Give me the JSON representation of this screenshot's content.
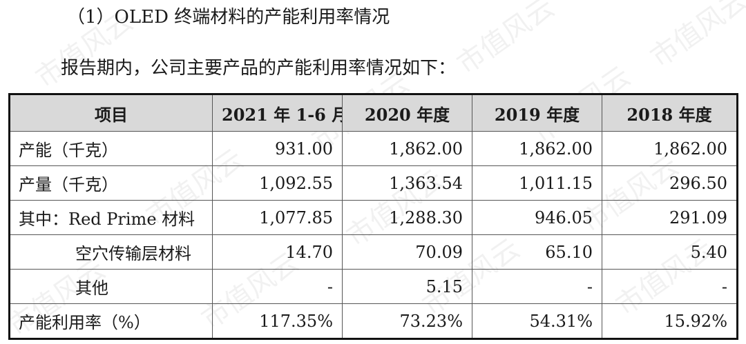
{
  "heading": "（1）OLED 终端材料的产能利用率情况",
  "intro": "报告期内，公司主要产品的产能利用率情况如下：",
  "watermark_text": "市值风云",
  "table": {
    "headers": [
      "项目",
      "2021 年 1-6 月",
      "2020 年度",
      "2019 年度",
      "2018 年度"
    ],
    "rows": [
      {
        "label": "产能（千克）",
        "values": [
          "931.00",
          "1,862.00",
          "1,862.00",
          "1,862.00"
        ]
      },
      {
        "label": "产量（千克）",
        "values": [
          "1,092.55",
          "1,363.54",
          "1,011.15",
          "296.50"
        ]
      },
      {
        "label": "其中：Red Prime 材料",
        "values": [
          "1,077.85",
          "1,288.30",
          "946.05",
          "291.09"
        ]
      },
      {
        "label": "空穴传输层材料",
        "values": [
          "14.70",
          "70.09",
          "65.10",
          "5.40"
        ]
      },
      {
        "label": "其他",
        "values": [
          "-",
          "5.15",
          "-",
          "-"
        ]
      },
      {
        "label": "产能利用率（%）",
        "values": [
          "117.35%",
          "73.23%",
          "54.31%",
          "15.92%"
        ]
      }
    ]
  }
}
